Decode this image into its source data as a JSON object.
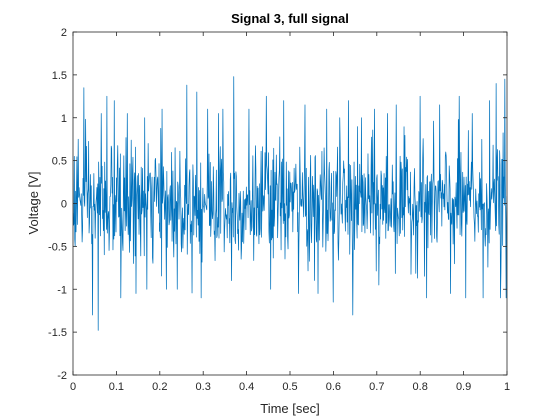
{
  "chart_data": {
    "type": "line",
    "title": "Signal 3, full signal",
    "xlabel": "Time [sec]",
    "ylabel": "Voltage [V]",
    "xlim": [
      0,
      1
    ],
    "ylim": [
      -2,
      2
    ],
    "xticks": [
      0,
      0.1,
      0.2,
      0.3,
      0.4,
      0.5,
      0.6,
      0.7,
      0.8,
      0.9,
      1
    ],
    "yticks": [
      -2,
      -1.5,
      -1,
      -0.5,
      0,
      0.5,
      1,
      1.5,
      2
    ],
    "xtick_labels": [
      "0",
      "0.1",
      "0.2",
      "0.3",
      "0.4",
      "0.5",
      "0.6",
      "0.7",
      "0.8",
      "0.9",
      "1"
    ],
    "ytick_labels": [
      "-2",
      "-1.5",
      "-1",
      "-0.5",
      "0",
      "0.5",
      "1",
      "1.5",
      "2"
    ],
    "grid": false,
    "legend": "none",
    "series": [
      {
        "color": "#0072BD",
        "sample_count": 1000,
        "signal_shape": "dense noise centred on 0 V, mostly within ±0.5 V",
        "approx_std": 0.33,
        "peak_events": [
          {
            "x": 0.003,
            "y": 0.55
          },
          {
            "x": 0.012,
            "y": 0.75
          },
          {
            "x": 0.025,
            "y": 1.35
          },
          {
            "x": 0.045,
            "y": -1.3
          },
          {
            "x": 0.058,
            "y": -1.48
          },
          {
            "x": 0.065,
            "y": 1.05
          },
          {
            "x": 0.078,
            "y": 1.25
          },
          {
            "x": 0.095,
            "y": 1.2
          },
          {
            "x": 0.11,
            "y": -1.1
          },
          {
            "x": 0.125,
            "y": 1.05
          },
          {
            "x": 0.145,
            "y": -1.05
          },
          {
            "x": 0.165,
            "y": 1.0
          },
          {
            "x": 0.17,
            "y": -1.0
          },
          {
            "x": 0.205,
            "y": 1.1
          },
          {
            "x": 0.215,
            "y": -1.0
          },
          {
            "x": 0.24,
            "y": -1.0
          },
          {
            "x": 0.262,
            "y": 1.38
          },
          {
            "x": 0.285,
            "y": 1.3
          },
          {
            "x": 0.295,
            "y": -1.1
          },
          {
            "x": 0.31,
            "y": 1.1
          },
          {
            "x": 0.335,
            "y": 1.05
          },
          {
            "x": 0.345,
            "y": 1.1
          },
          {
            "x": 0.37,
            "y": 1.48
          },
          {
            "x": 0.365,
            "y": -0.9
          },
          {
            "x": 0.405,
            "y": 1.1
          },
          {
            "x": 0.445,
            "y": 1.25
          },
          {
            "x": 0.455,
            "y": -1.0
          },
          {
            "x": 0.485,
            "y": 1.2
          },
          {
            "x": 0.52,
            "y": -1.05
          },
          {
            "x": 0.535,
            "y": 1.15
          },
          {
            "x": 0.565,
            "y": -1.05
          },
          {
            "x": 0.585,
            "y": 1.1
          },
          {
            "x": 0.6,
            "y": -1.15
          },
          {
            "x": 0.615,
            "y": 1.0
          },
          {
            "x": 0.635,
            "y": 1.2
          },
          {
            "x": 0.645,
            "y": -1.3
          },
          {
            "x": 0.665,
            "y": 1.0
          },
          {
            "x": 0.695,
            "y": 1.1
          },
          {
            "x": 0.705,
            "y": -0.95
          },
          {
            "x": 0.725,
            "y": 1.05
          },
          {
            "x": 0.745,
            "y": 1.15
          },
          {
            "x": 0.8,
            "y": 1.25
          },
          {
            "x": 0.815,
            "y": -1.1
          },
          {
            "x": 0.845,
            "y": 1.15
          },
          {
            "x": 0.87,
            "y": -1.05
          },
          {
            "x": 0.89,
            "y": 1.25
          },
          {
            "x": 0.905,
            "y": -1.1
          },
          {
            "x": 0.92,
            "y": 1.05
          },
          {
            "x": 0.945,
            "y": -1.1
          },
          {
            "x": 0.96,
            "y": 1.2
          },
          {
            "x": 0.975,
            "y": 1.4
          },
          {
            "x": 0.985,
            "y": -1.1
          },
          {
            "x": 0.995,
            "y": 1.45
          },
          {
            "x": 0.998,
            "y": -1.1
          }
        ]
      }
    ]
  }
}
